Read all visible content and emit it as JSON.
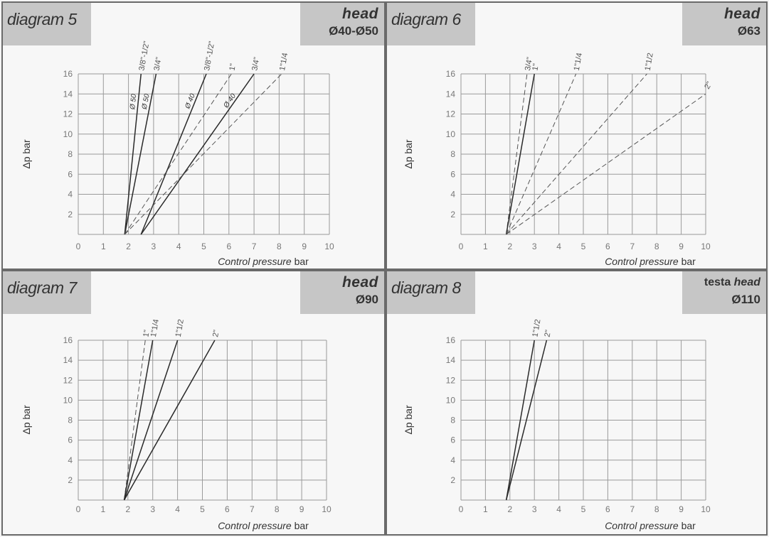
{
  "chart_data": [
    {
      "type": "line",
      "title": "diagram 5",
      "head": {
        "line1": "head",
        "line1_prefix": "",
        "line2": "Ø40-Ø50"
      },
      "xlabel_italic": "Control pressure",
      "xlabel_unit": "bar",
      "ylabel": "Δp bar",
      "xlim": [
        0,
        10
      ],
      "ylim": [
        0,
        16
      ],
      "x_ticks": [
        "0",
        "1",
        "2",
        "3",
        "4",
        "5",
        "6",
        "7",
        "8",
        "9",
        "10"
      ],
      "y_ticks": [
        "2",
        "4",
        "6",
        "8",
        "10",
        "12",
        "14",
        "16"
      ],
      "grid": true,
      "series": [
        {
          "name": "3/8\"-1/2\"",
          "style": "solid",
          "x": [
            1.85,
            2.5
          ],
          "y": [
            0,
            16
          ],
          "tag": "Ø 50"
        },
        {
          "name": "3/4\"",
          "style": "solid",
          "x": [
            1.85,
            3.1
          ],
          "y": [
            0,
            16
          ],
          "tag": "Ø 50"
        },
        {
          "name": "3/8\"-1/2\"",
          "style": "solid",
          "x": [
            2.5,
            5.1
          ],
          "y": [
            0,
            16
          ],
          "tag": "Ø 40"
        },
        {
          "name": "1\"",
          "style": "dashed",
          "x": [
            1.85,
            6.1
          ],
          "y": [
            0,
            16
          ],
          "tag": ""
        },
        {
          "name": "3/4\"",
          "style": "solid",
          "x": [
            2.5,
            7.0
          ],
          "y": [
            0,
            16
          ],
          "tag": "Ø 40"
        },
        {
          "name": "1\"1/4",
          "style": "dashed",
          "x": [
            1.85,
            8.1
          ],
          "y": [
            0,
            16
          ],
          "tag": ""
        }
      ]
    },
    {
      "type": "line",
      "title": "diagram 6",
      "head": {
        "line1": "head",
        "line1_prefix": "",
        "line2": "Ø63"
      },
      "xlabel_italic": "Control pressure",
      "xlabel_unit": "bar",
      "ylabel": "Δp bar",
      "xlim": [
        0,
        10
      ],
      "ylim": [
        0,
        16
      ],
      "x_ticks": [
        "0",
        "1",
        "2",
        "3",
        "4",
        "5",
        "6",
        "7",
        "8",
        "9",
        "10"
      ],
      "y_ticks": [
        "2",
        "4",
        "6",
        "8",
        "10",
        "12",
        "14",
        "16"
      ],
      "grid": true,
      "series": [
        {
          "name": "3/4\"",
          "style": "dashed",
          "x": [
            1.85,
            2.7
          ],
          "y": [
            0,
            16
          ],
          "tag": ""
        },
        {
          "name": "1\"",
          "style": "solid",
          "x": [
            1.85,
            3.0
          ],
          "y": [
            0,
            16
          ],
          "tag": ""
        },
        {
          "name": "1\"1/4",
          "style": "dashed",
          "x": [
            1.85,
            4.7
          ],
          "y": [
            0,
            16
          ],
          "tag": ""
        },
        {
          "name": "1\"1/2",
          "style": "dashed",
          "x": [
            1.85,
            7.6
          ],
          "y": [
            0,
            16
          ],
          "tag": ""
        },
        {
          "name": "2\"",
          "style": "dashed",
          "x": [
            1.85,
            10.0
          ],
          "y": [
            0,
            14
          ],
          "tag": ""
        }
      ]
    },
    {
      "type": "line",
      "title": "diagram 7",
      "head": {
        "line1": "head",
        "line1_prefix": "",
        "line2": "Ø90"
      },
      "xlabel_italic": "Control pressure",
      "xlabel_unit": "bar",
      "ylabel": "Δp bar",
      "xlim": [
        0,
        10
      ],
      "ylim": [
        0,
        16
      ],
      "x_ticks": [
        "0",
        "1",
        "2",
        "3",
        "4",
        "5",
        "6",
        "7",
        "8",
        "9",
        "10"
      ],
      "y_ticks": [
        "2",
        "4",
        "6",
        "8",
        "10",
        "12",
        "14",
        "16"
      ],
      "grid": true,
      "series": [
        {
          "name": "1\"",
          "style": "dashed",
          "x": [
            1.85,
            2.7
          ],
          "y": [
            0,
            16
          ],
          "tag": ""
        },
        {
          "name": "1\"1/4",
          "style": "solid",
          "x": [
            1.85,
            3.0
          ],
          "y": [
            0,
            16
          ],
          "tag": ""
        },
        {
          "name": "1\"1/2",
          "style": "solid",
          "x": [
            1.85,
            4.0
          ],
          "y": [
            0,
            16
          ],
          "tag": ""
        },
        {
          "name": "2\"",
          "style": "solid",
          "x": [
            1.85,
            5.5
          ],
          "y": [
            0,
            16
          ],
          "tag": ""
        }
      ]
    },
    {
      "type": "line",
      "title": "diagram 8",
      "head": {
        "line1": "head",
        "line1_prefix": "testa ",
        "line2": "Ø110"
      },
      "xlabel_italic": "Control pressure",
      "xlabel_unit": "bar",
      "ylabel": "Δp bar",
      "xlim": [
        0,
        10
      ],
      "ylim": [
        0,
        16
      ],
      "x_ticks": [
        "0",
        "1",
        "2",
        "3",
        "4",
        "5",
        "6",
        "7",
        "8",
        "9",
        "10"
      ],
      "y_ticks": [
        "2",
        "4",
        "6",
        "8",
        "10",
        "12",
        "14",
        "16"
      ],
      "grid": true,
      "series": [
        {
          "name": "1\"1/2",
          "style": "solid",
          "x": [
            1.85,
            3.0
          ],
          "y": [
            0,
            16
          ],
          "tag": ""
        },
        {
          "name": "2\"",
          "style": "solid",
          "x": [
            1.85,
            3.5
          ],
          "y": [
            0,
            16
          ],
          "tag": ""
        }
      ]
    }
  ]
}
